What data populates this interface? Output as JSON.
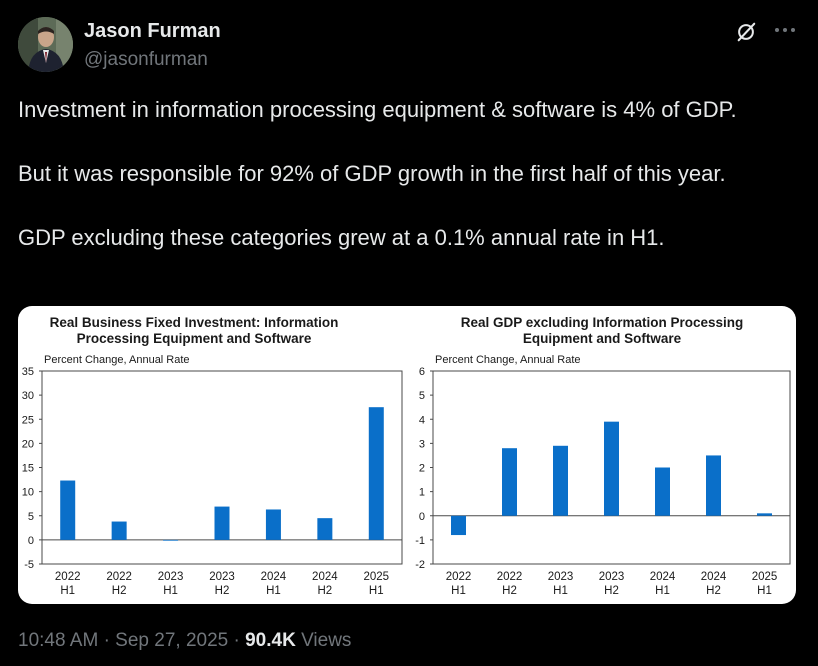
{
  "author": {
    "name": "Jason Furman",
    "handle": "@jasonfurman"
  },
  "icons": {
    "grok": "grok-icon",
    "more": "more-icon"
  },
  "tweet": {
    "paragraphs": [
      "Investment in information processing equipment & software is 4% of GDP.",
      "But it was responsible for 92% of GDP growth in the first half of this year.",
      "GDP excluding these categories grew at a 0.1% annual rate in H1."
    ]
  },
  "meta": {
    "time": "10:48 AM",
    "date": "Sep 27, 2025",
    "separator": "·",
    "views_count": "90.4K",
    "views_label": "Views"
  },
  "colors": {
    "bar": "#0a6fc9",
    "background": "#000000",
    "text_primary": "#e7e9ea",
    "text_secondary": "#71767b"
  },
  "chart_data": [
    {
      "type": "bar",
      "title": "Real Business Fixed Investment: Information Processing Equipment and Software",
      "title_lines": [
        "Real Business Fixed Investment: Information",
        "Processing Equipment and Software"
      ],
      "ylabel": "Percent Change, Annual Rate",
      "xlabel": "",
      "categories": [
        [
          "2022",
          "H1"
        ],
        [
          "2022",
          "H2"
        ],
        [
          "2023",
          "H1"
        ],
        [
          "2023",
          "H2"
        ],
        [
          "2024",
          "H1"
        ],
        [
          "2024",
          "H2"
        ],
        [
          "2025",
          "H1"
        ]
      ],
      "values": [
        12.3,
        3.8,
        0.0,
        6.9,
        6.3,
        4.5,
        27.5
      ],
      "ylim": [
        -5,
        35
      ],
      "yticks": [
        -5,
        0,
        5,
        10,
        15,
        20,
        25,
        30,
        35
      ],
      "grid": false,
      "legend": "none"
    },
    {
      "type": "bar",
      "title": "Real GDP excluding Information Processing Equipment and Software",
      "title_lines": [
        "Real GDP excluding Information Processing",
        "Equipment and Software"
      ],
      "ylabel": "Percent Change, Annual Rate",
      "xlabel": "",
      "categories": [
        [
          "2022",
          "H1"
        ],
        [
          "2022",
          "H2"
        ],
        [
          "2023",
          "H1"
        ],
        [
          "2023",
          "H2"
        ],
        [
          "2024",
          "H1"
        ],
        [
          "2024",
          "H2"
        ],
        [
          "2025",
          "H1"
        ]
      ],
      "values": [
        -0.8,
        2.8,
        2.9,
        3.9,
        2.0,
        2.5,
        0.1
      ],
      "ylim": [
        -2,
        6
      ],
      "yticks": [
        -2,
        -1,
        0,
        1,
        2,
        3,
        4,
        5,
        6
      ],
      "grid": false,
      "legend": "none"
    }
  ]
}
